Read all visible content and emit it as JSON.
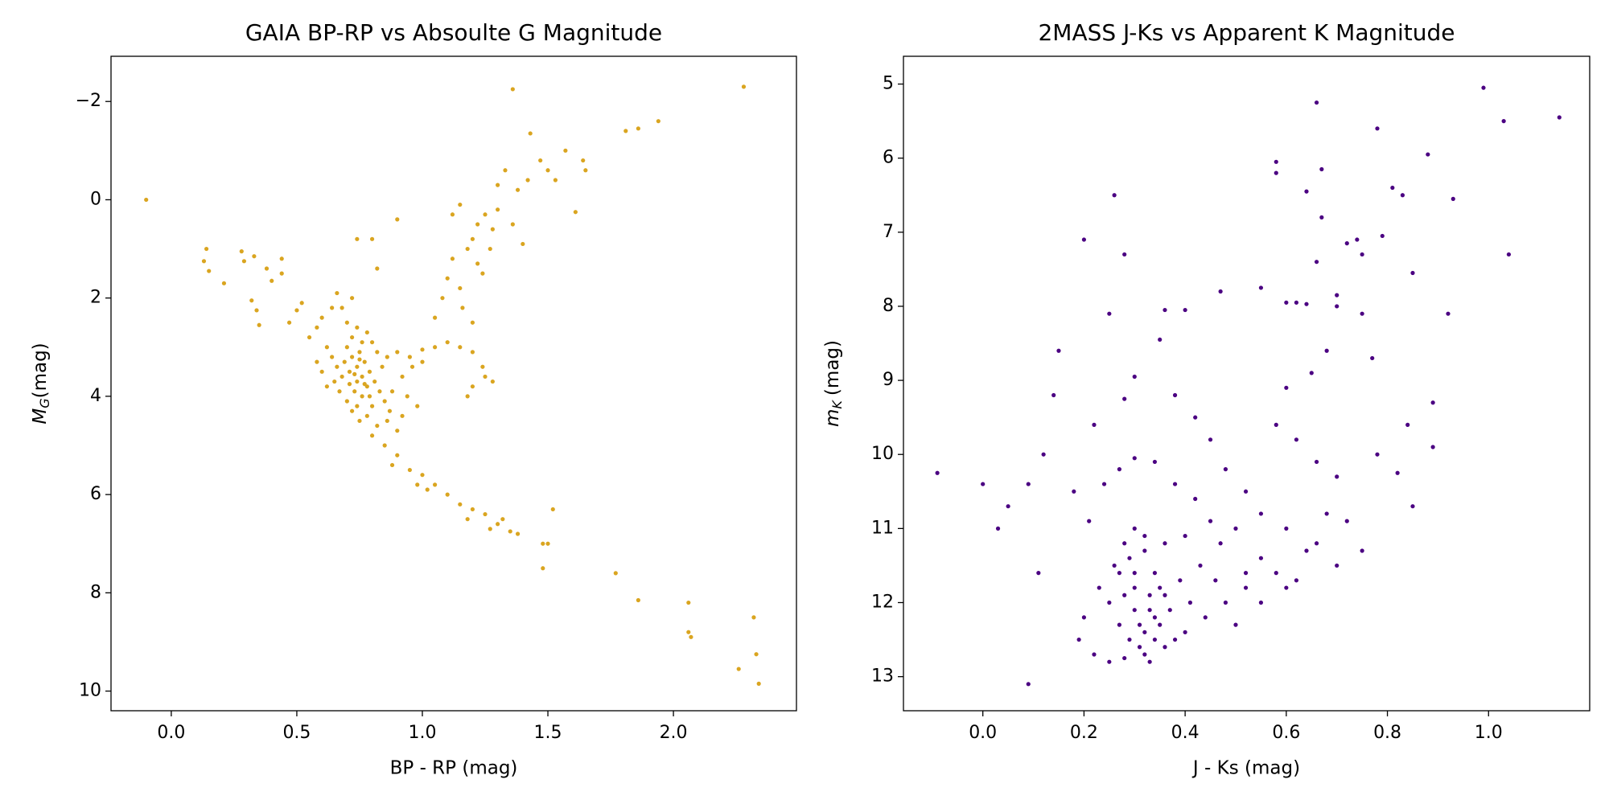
{
  "chart_data": [
    {
      "type": "scatter",
      "title": "GAIA BP-RP vs Absoulte G Magnitude",
      "x_label": "BP - RP (mag)",
      "y_label": {
        "symbol": "M",
        "subscript": "G",
        "unit": "(mag)"
      },
      "color": "#daa520",
      "xlim": [
        -0.24,
        2.49
      ],
      "ylim": [
        10.4,
        -2.92
      ],
      "xticks": [
        {
          "value": 0,
          "label": "0.0"
        },
        0.5,
        {
          "value": 1,
          "label": "1.0"
        },
        1.5,
        {
          "value": 2,
          "label": "2.0"
        }
      ],
      "yticks": [
        {
          "value": -2,
          "label": "−2"
        },
        0,
        2,
        4,
        6,
        8,
        10
      ],
      "x": [
        -0.1,
        1.36,
        2.28,
        1.94,
        1.86,
        1.81,
        1.43,
        1.57,
        1.64,
        1.65,
        1.61,
        2.06,
        2.06,
        2.07,
        2.32,
        2.33,
        2.26,
        2.34,
        1.77,
        1.86,
        1.48,
        1.5,
        1.48,
        1.52,
        0.13,
        0.14,
        0.15,
        0.21,
        0.28,
        0.29,
        0.33,
        0.38,
        0.4,
        0.44,
        0.44,
        0.32,
        0.34,
        0.35,
        0.47,
        0.5,
        0.52,
        0.55,
        0.58,
        0.6,
        0.64,
        0.66,
        0.8,
        0.85,
        0.9,
        0.95,
        1.0,
        1.05,
        1.1,
        1.15,
        1.2,
        1.25,
        1.3,
        1.35,
        1.38,
        0.88,
        0.98,
        1.02,
        1.18,
        1.27,
        1.32,
        0.9,
        0.95,
        1.0,
        1.05,
        1.1,
        1.15,
        1.2,
        1.24,
        1.25,
        1.28,
        1.2,
        1.18,
        1.05,
        1.08,
        1.1,
        1.12,
        1.15,
        1.18,
        1.2,
        1.22,
        1.25,
        1.28,
        1.3,
        1.27,
        1.22,
        1.16,
        1.2,
        1.24,
        1.3,
        1.33,
        1.38,
        1.42,
        1.47,
        1.5,
        1.53,
        1.4,
        1.36,
        1.12,
        1.15,
        0.9,
        0.8,
        0.74,
        0.82,
        0.7,
        0.72,
        0.74,
        0.76,
        0.78,
        0.73,
        0.71,
        0.69,
        0.75,
        0.77,
        0.79,
        0.81,
        0.83,
        0.85,
        0.87,
        0.8,
        0.78,
        0.76,
        0.74,
        0.72,
        0.74,
        0.76,
        0.68,
        0.66,
        0.64,
        0.62,
        0.65,
        0.67,
        0.7,
        0.72,
        0.75,
        0.82,
        0.86,
        0.9,
        0.92,
        0.88,
        0.84,
        0.86,
        0.82,
        0.8,
        0.78,
        0.7,
        0.68,
        0.72,
        0.6,
        0.58,
        0.62,
        0.73,
        0.75,
        0.77,
        0.71,
        0.79,
        0.74,
        0.92,
        0.96,
        1.0,
        0.94,
        0.98
      ],
      "values": [
        0,
        -2.25,
        -2.3,
        -1.6,
        -1.45,
        -1.4,
        -1.35,
        -1.0,
        -0.8,
        -0.6,
        0.25,
        8.2,
        8.8,
        8.9,
        8.5,
        9.25,
        9.55,
        9.85,
        7.6,
        8.15,
        7.0,
        7.0,
        7.5,
        6.3,
        1.25,
        1.0,
        1.45,
        1.7,
        1.05,
        1.25,
        1.15,
        1.4,
        1.65,
        1.2,
        1.5,
        2.05,
        2.25,
        2.55,
        2.5,
        2.25,
        2.1,
        2.8,
        2.6,
        2.4,
        2.2,
        1.9,
        4.8,
        5.0,
        5.2,
        5.5,
        5.6,
        5.8,
        6.0,
        6.2,
        6.3,
        6.4,
        6.6,
        6.75,
        6.8,
        5.4,
        5.8,
        5.9,
        6.5,
        6.7,
        6.5,
        3.1,
        3.2,
        3.05,
        3.0,
        2.9,
        3.0,
        3.1,
        3.4,
        3.6,
        3.7,
        3.8,
        4.0,
        2.4,
        2.0,
        1.6,
        1.2,
        1.8,
        1.0,
        0.8,
        0.5,
        0.3,
        0.6,
        0.2,
        1.0,
        1.3,
        2.2,
        2.5,
        1.5,
        -0.3,
        -0.6,
        -0.2,
        -0.4,
        -0.8,
        -0.6,
        -0.4,
        0.9,
        0.5,
        0.3,
        0.1,
        0.4,
        0.8,
        0.8,
        1.4,
        3.0,
        3.2,
        3.4,
        3.6,
        3.8,
        3.9,
        3.5,
        3.3,
        3.1,
        3.3,
        3.5,
        3.7,
        3.9,
        4.1,
        4.3,
        4.2,
        4.4,
        4.0,
        3.7,
        2.8,
        2.6,
        2.9,
        3.6,
        3.4,
        3.2,
        3.0,
        3.7,
        3.9,
        4.1,
        4.3,
        4.5,
        4.6,
        4.5,
        4.7,
        4.4,
        3.9,
        3.4,
        3.2,
        3.1,
        2.9,
        2.7,
        2.5,
        2.2,
        2.0,
        3.5,
        3.3,
        3.8,
        3.55,
        3.25,
        3.75,
        3.75,
        4.0,
        4.2,
        3.6,
        3.4,
        3.3,
        4.0,
        4.2
      ]
    },
    {
      "type": "scatter",
      "title": "2MASS J-Ks vs Apparent K Magnitude",
      "x_label": "J - Ks (mag)",
      "y_label": {
        "symbol": "m",
        "subscript": "K",
        "unit": "(mag)"
      },
      "color": "#4b0082",
      "xlim": [
        -0.157,
        1.2
      ],
      "ylim": [
        13.46,
        4.625
      ],
      "xticks": [
        {
          "value": 0,
          "label": "0.0"
        },
        0.2,
        0.4,
        0.6,
        0.8,
        {
          "value": 1,
          "label": "1.0"
        }
      ],
      "yticks": [
        5,
        6,
        7,
        8,
        9,
        10,
        11,
        12,
        13
      ],
      "x": [
        -0.09,
        0.0,
        0.03,
        0.05,
        0.09,
        0.09,
        0.11,
        0.12,
        0.14,
        0.15,
        0.2,
        0.25,
        0.26,
        0.28,
        0.36,
        0.4,
        0.47,
        0.55,
        0.58,
        0.58,
        0.64,
        0.66,
        0.67,
        0.67,
        0.78,
        0.81,
        0.83,
        0.88,
        0.93,
        0.99,
        1.03,
        1.14,
        1.04,
        0.79,
        0.74,
        0.72,
        0.75,
        0.85,
        0.92,
        0.89,
        0.84,
        0.89,
        0.85,
        0.82,
        0.78,
        0.77,
        0.75,
        0.66,
        0.6,
        0.62,
        0.64,
        0.7,
        0.7,
        0.68,
        0.65,
        0.6,
        0.58,
        0.62,
        0.66,
        0.7,
        0.72,
        0.75,
        0.7,
        0.64,
        0.6,
        0.55,
        0.52,
        0.48,
        0.45,
        0.42,
        0.38,
        0.35,
        0.3,
        0.28,
        0.22,
        0.18,
        0.21,
        0.24,
        0.27,
        0.3,
        0.34,
        0.38,
        0.42,
        0.45,
        0.5,
        0.55,
        0.6,
        0.52,
        0.48,
        0.44,
        0.4,
        0.38,
        0.36,
        0.32,
        0.28,
        0.25,
        0.22,
        0.2,
        0.19,
        0.23,
        0.26,
        0.28,
        0.3,
        0.32,
        0.34,
        0.36,
        0.34,
        0.32,
        0.3,
        0.28,
        0.3,
        0.33,
        0.35,
        0.31,
        0.27,
        0.25,
        0.29,
        0.33,
        0.37,
        0.39,
        0.41,
        0.43,
        0.46,
        0.5,
        0.55,
        0.58,
        0.62,
        0.66,
        0.68,
        0.52,
        0.47,
        0.4,
        0.36,
        0.32,
        0.3,
        0.34,
        0.27,
        0.31,
        0.33,
        0.35,
        0.29
      ],
      "values": [
        10.25,
        10.4,
        11.0,
        10.7,
        10.4,
        13.1,
        11.6,
        10.0,
        9.2,
        8.6,
        7.1,
        8.1,
        6.5,
        7.3,
        8.05,
        8.05,
        7.8,
        7.75,
        6.05,
        6.2,
        6.45,
        5.25,
        6.15,
        6.8,
        5.6,
        6.4,
        6.5,
        5.95,
        6.55,
        5.05,
        5.5,
        5.45,
        7.3,
        7.05,
        7.1,
        7.15,
        7.3,
        7.55,
        8.1,
        9.3,
        9.6,
        9.9,
        10.7,
        10.25,
        10.0,
        8.7,
        8.1,
        7.4,
        7.95,
        7.95,
        7.97,
        7.85,
        8.0,
        8.6,
        8.9,
        9.1,
        9.6,
        9.8,
        10.1,
        10.3,
        10.9,
        11.3,
        11.5,
        11.3,
        11.0,
        10.8,
        10.5,
        10.2,
        9.8,
        9.5,
        9.2,
        8.45,
        8.95,
        9.25,
        9.6,
        10.5,
        10.9,
        10.4,
        10.2,
        10.05,
        10.1,
        10.4,
        10.6,
        10.9,
        11.0,
        11.4,
        11.8,
        11.8,
        12.0,
        12.2,
        12.4,
        12.5,
        12.6,
        12.7,
        12.75,
        12.8,
        12.7,
        12.2,
        12.5,
        11.8,
        11.5,
        11.2,
        11.0,
        11.3,
        11.6,
        11.9,
        12.2,
        12.4,
        12.1,
        11.9,
        11.6,
        11.9,
        12.3,
        12.6,
        12.3,
        12.0,
        12.5,
        12.8,
        12.1,
        11.7,
        12.0,
        11.5,
        11.7,
        12.3,
        12.0,
        11.6,
        11.7,
        11.2,
        10.8,
        11.6,
        11.2,
        11.1,
        11.2,
        11.1,
        11.8,
        12.5,
        11.6,
        12.3,
        12.1,
        11.8,
        11.4
      ]
    }
  ]
}
